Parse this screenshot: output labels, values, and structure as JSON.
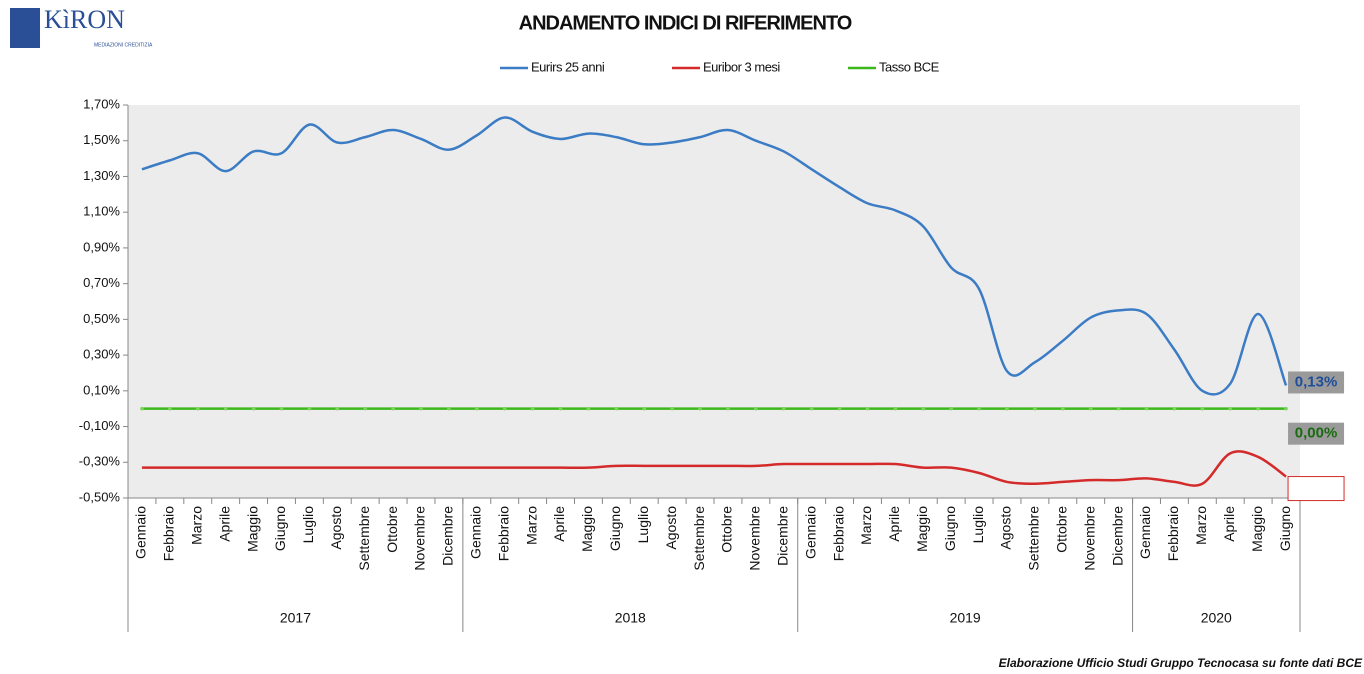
{
  "logo": {
    "name": "KìRON",
    "tagline": "MEDIAZIONI CREDITIZIA"
  },
  "chart_data": {
    "type": "line",
    "title": "ANDAMENTO INDICI DI RIFERIMENTO",
    "source": "Elaborazione Ufficio Studi Gruppo Tecnocasa su fonte dati BCE",
    "category_groups": [
      {
        "label": "2017",
        "categories": [
          "Gennaio",
          "Febbraio",
          "Marzo",
          "Aprile",
          "Maggio",
          "Giugno",
          "Luglio",
          "Agosto",
          "Settembre",
          "Ottobre",
          "Novembre",
          "Dicembre"
        ]
      },
      {
        "label": "2018",
        "categories": [
          "Gennaio",
          "Febbraio",
          "Marzo",
          "Aprile",
          "Maggio",
          "Giugno",
          "Luglio",
          "Agosto",
          "Settembre",
          "Ottobre",
          "Novembre",
          "Dicembre"
        ]
      },
      {
        "label": "2019",
        "categories": [
          "Gennaio",
          "Febbraio",
          "Marzo",
          "Aprile",
          "Maggio",
          "Giugno",
          "Luglio",
          "Agosto",
          "Settembre",
          "Ottobre",
          "Novembre",
          "Dicembre"
        ]
      },
      {
        "label": "2020",
        "categories": [
          "Gennaio",
          "Febbraio",
          "Marzo",
          "Aprile",
          "Maggio",
          "Giugno"
        ]
      }
    ],
    "series": [
      {
        "name": "Eurirs 25 anni",
        "color": "#3b7cc4",
        "end_label": "0,13%",
        "end_label_color": "#1f4e99",
        "values": [
          1.34,
          1.39,
          1.43,
          1.33,
          1.44,
          1.43,
          1.59,
          1.49,
          1.52,
          1.56,
          1.51,
          1.45,
          1.53,
          1.63,
          1.55,
          1.51,
          1.54,
          1.52,
          1.48,
          1.49,
          1.52,
          1.56,
          1.5,
          1.44,
          1.34,
          1.24,
          1.15,
          1.11,
          1.02,
          0.79,
          0.67,
          0.21,
          0.26,
          0.38,
          0.51,
          0.55,
          0.53,
          0.33,
          0.1,
          0.14,
          0.53,
          0.13
        ]
      },
      {
        "name": "Euribor 3 mesi",
        "color": "#d42a2a",
        "values": [
          -0.33,
          -0.33,
          -0.33,
          -0.33,
          -0.33,
          -0.33,
          -0.33,
          -0.33,
          -0.33,
          -0.33,
          -0.33,
          -0.33,
          -0.33,
          -0.33,
          -0.33,
          -0.33,
          -0.33,
          -0.32,
          -0.32,
          -0.32,
          -0.32,
          -0.32,
          -0.32,
          -0.31,
          -0.31,
          -0.31,
          -0.31,
          -0.31,
          -0.33,
          -0.33,
          -0.36,
          -0.41,
          -0.42,
          -0.41,
          -0.4,
          -0.4,
          -0.39,
          -0.41,
          -0.42,
          -0.25,
          -0.27,
          -0.38
        ]
      },
      {
        "name": "Tasso BCE",
        "color": "#3cb81c",
        "end_label": "0,00%",
        "end_label_color": "#1a6b10",
        "values": [
          0,
          0,
          0,
          0,
          0,
          0,
          0,
          0,
          0,
          0,
          0,
          0,
          0,
          0,
          0,
          0,
          0,
          0,
          0,
          0,
          0,
          0,
          0,
          0,
          0,
          0,
          0,
          0,
          0,
          0,
          0,
          0,
          0,
          0,
          0,
          0,
          0,
          0,
          0,
          0,
          0,
          0
        ]
      }
    ],
    "ylim": [
      -0.5,
      1.7
    ],
    "yticks": [
      {
        "value": -0.5,
        "label": "-0,50%"
      },
      {
        "value": -0.3,
        "label": "-0,30%"
      },
      {
        "value": -0.1,
        "label": "-0,10%"
      },
      {
        "value": 0.1,
        "label": "0,10%"
      },
      {
        "value": 0.3,
        "label": "0,30%"
      },
      {
        "value": 0.5,
        "label": "0,50%"
      },
      {
        "value": 0.7,
        "label": "0,70%"
      },
      {
        "value": 0.9,
        "label": "0,90%"
      },
      {
        "value": 1.1,
        "label": "1,10%"
      },
      {
        "value": 1.3,
        "label": "1,30%"
      },
      {
        "value": 1.5,
        "label": "1,50%"
      },
      {
        "value": 1.7,
        "label": "1,70%"
      }
    ]
  }
}
